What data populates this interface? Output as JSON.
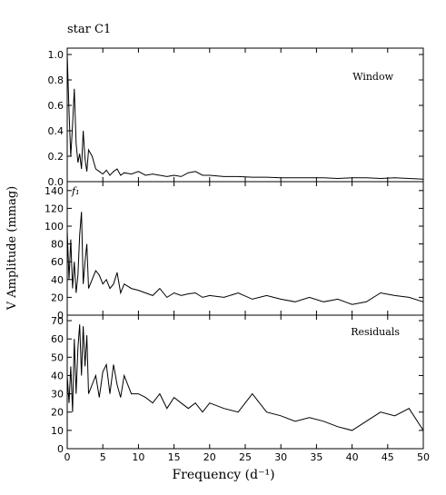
{
  "figure": {
    "title": "star C1",
    "ylabel": "V Amplitude (mmag)",
    "xlabel": "Frequency (d⁻¹)"
  },
  "chart_data": [
    {
      "type": "line",
      "panel": "top",
      "annotation": "Window",
      "xlim": [
        0,
        50
      ],
      "ylim": [
        0,
        1.05
      ],
      "yticks": [
        0.0,
        0.2,
        0.4,
        0.6,
        0.8,
        1.0
      ],
      "ytick_labels": [
        "0.0",
        "0.2",
        "0.4",
        "0.6",
        "0.8",
        "1.0"
      ],
      "series": [
        {
          "x": [
            0,
            0.25,
            0.5,
            0.75,
            1,
            1.25,
            1.5,
            1.75,
            2,
            2.25,
            2.5,
            2.75,
            3,
            3.5,
            4,
            4.5,
            5,
            5.5,
            6,
            6.5,
            7,
            7.5,
            8,
            9,
            10,
            11,
            12,
            13,
            14,
            15,
            16,
            17,
            18,
            19,
            20,
            22,
            24,
            26,
            28,
            30,
            32,
            34,
            36,
            38,
            40,
            42,
            44,
            46,
            48,
            50
          ],
          "y": [
            1.0,
            0.55,
            0.2,
            0.45,
            0.73,
            0.3,
            0.15,
            0.22,
            0.1,
            0.4,
            0.18,
            0.08,
            0.25,
            0.2,
            0.1,
            0.08,
            0.06,
            0.09,
            0.05,
            0.08,
            0.1,
            0.05,
            0.07,
            0.06,
            0.08,
            0.05,
            0.06,
            0.05,
            0.04,
            0.05,
            0.04,
            0.07,
            0.08,
            0.05,
            0.05,
            0.04,
            0.04,
            0.035,
            0.035,
            0.03,
            0.03,
            0.03,
            0.03,
            0.025,
            0.03,
            0.03,
            0.025,
            0.03,
            0.025,
            0.02
          ]
        }
      ]
    },
    {
      "type": "line",
      "panel": "middle",
      "annotation": "f₁",
      "xlim": [
        0,
        50
      ],
      "ylim": [
        0,
        150
      ],
      "yticks": [
        0,
        20,
        40,
        60,
        80,
        100,
        120,
        140
      ],
      "ytick_labels": [
        "0",
        "20",
        "40",
        "60",
        "80",
        "100",
        "120",
        "140"
      ],
      "series": [
        {
          "x": [
            0,
            0.25,
            0.5,
            0.75,
            1,
            1.25,
            1.5,
            1.75,
            2,
            2.25,
            2.5,
            2.75,
            3,
            3.5,
            4,
            4.5,
            5,
            5.5,
            6,
            6.5,
            7,
            7.5,
            8,
            9,
            10,
            11,
            12,
            13,
            14,
            15,
            16,
            17,
            18,
            19,
            20,
            22,
            24,
            26,
            28,
            30,
            32,
            34,
            36,
            38,
            40,
            42,
            44,
            46,
            48,
            50
          ],
          "y": [
            95,
            40,
            85,
            30,
            60,
            25,
            45,
            90,
            116,
            35,
            60,
            80,
            30,
            40,
            50,
            45,
            35,
            40,
            30,
            35,
            48,
            25,
            35,
            30,
            28,
            25,
            22,
            30,
            20,
            25,
            22,
            24,
            25,
            20,
            22,
            20,
            25,
            18,
            22,
            18,
            15,
            20,
            15,
            18,
            12,
            15,
            25,
            22,
            20,
            15
          ]
        }
      ]
    },
    {
      "type": "line",
      "panel": "bottom",
      "annotation": "Residuals",
      "xlim": [
        0,
        50
      ],
      "ylim": [
        0,
        73
      ],
      "yticks": [
        0,
        10,
        20,
        30,
        40,
        50,
        60,
        70
      ],
      "ytick_labels": [
        "0",
        "10",
        "20",
        "30",
        "40",
        "50",
        "60",
        "70"
      ],
      "xticks": [
        0,
        5,
        10,
        15,
        20,
        25,
        30,
        35,
        40,
        45,
        50
      ],
      "xtick_labels": [
        "0",
        "5",
        "10",
        "15",
        "20",
        "25",
        "30",
        "35",
        "40",
        "45",
        "50"
      ],
      "series": [
        {
          "x": [
            0,
            0.25,
            0.5,
            0.75,
            1,
            1.25,
            1.5,
            1.75,
            2,
            2.25,
            2.5,
            2.75,
            3,
            3.5,
            4,
            4.5,
            5,
            5.5,
            6,
            6.5,
            7,
            7.5,
            8,
            9,
            10,
            11,
            12,
            13,
            14,
            15,
            16,
            17,
            18,
            19,
            20,
            22,
            24,
            26,
            28,
            30,
            32,
            34,
            36,
            38,
            40,
            42,
            44,
            46,
            48,
            50
          ],
          "y": [
            40,
            25,
            45,
            20,
            60,
            30,
            55,
            68,
            40,
            67,
            45,
            62,
            30,
            35,
            40,
            28,
            42,
            46,
            30,
            46,
            35,
            28,
            40,
            30,
            30,
            28,
            25,
            30,
            22,
            28,
            25,
            22,
            25,
            20,
            25,
            22,
            20,
            30,
            20,
            18,
            15,
            17,
            15,
            12,
            10,
            15,
            20,
            18,
            22,
            10
          ]
        }
      ]
    }
  ]
}
